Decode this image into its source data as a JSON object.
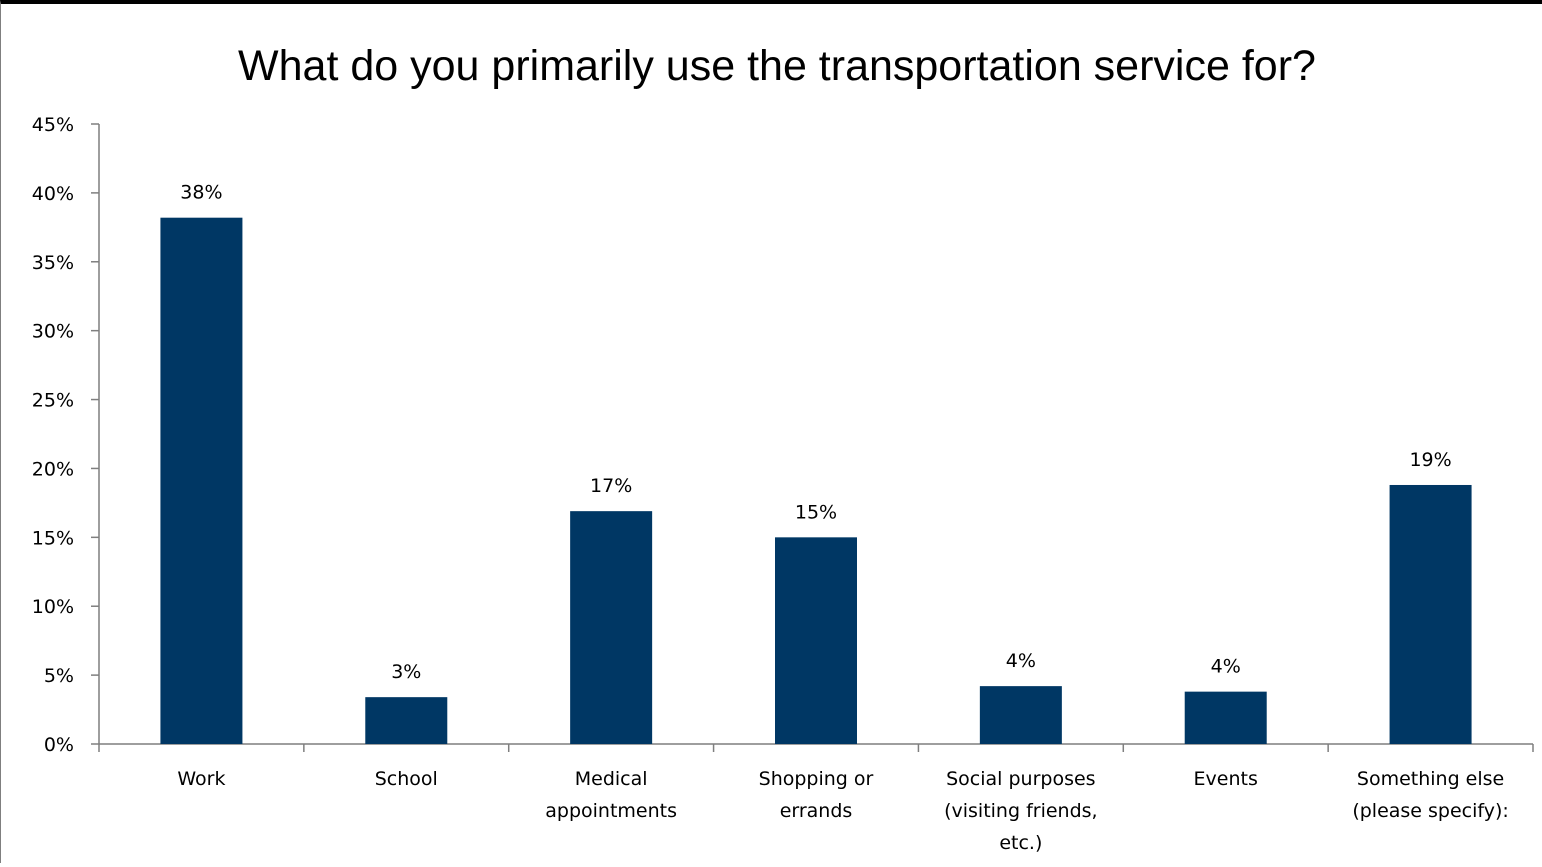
{
  "chart_data": {
    "type": "bar",
    "title": "What do you primarily use the transportation service for?",
    "categories": [
      [
        "Work"
      ],
      [
        "School"
      ],
      [
        "Medical",
        "appointments"
      ],
      [
        "Shopping or",
        "errands"
      ],
      [
        "Social purposes",
        "(visiting friends,",
        "etc.)"
      ],
      [
        "Events"
      ],
      [
        "Something else",
        "(please specify):"
      ]
    ],
    "values": [
      38.2,
      3.4,
      16.9,
      15.0,
      4.2,
      3.8,
      18.8
    ],
    "data_labels": [
      "38%",
      "3%",
      "17%",
      "15%",
      "4%",
      "4%",
      "19%"
    ],
    "ylim": [
      0,
      45
    ],
    "y_ticks": [
      0,
      5,
      10,
      15,
      20,
      25,
      30,
      35,
      40,
      45
    ],
    "y_tick_labels": [
      "0%",
      "5%",
      "10%",
      "15%",
      "20%",
      "25%",
      "30%",
      "35%",
      "40%",
      "45%"
    ],
    "bar_color": "#003764",
    "axis_color": "#7f7f7f",
    "grid": false,
    "legend": "none"
  }
}
